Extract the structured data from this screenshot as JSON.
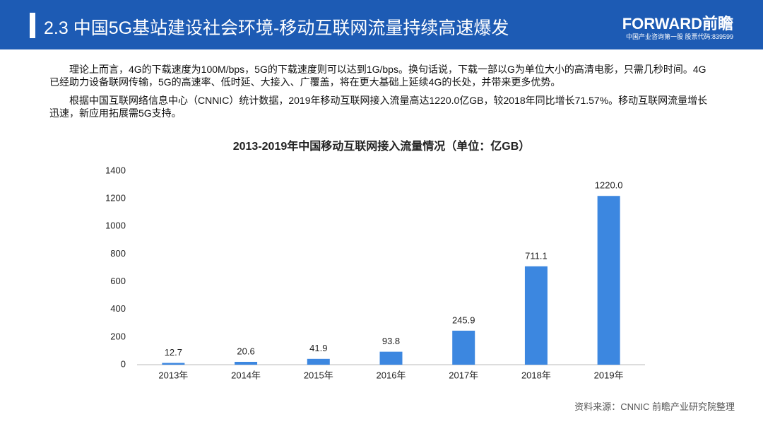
{
  "header": {
    "title": "2.3 中国5G基站建设社会环境-移动互联网流量持续高速爆发",
    "logo": "FORWARD前瞻",
    "logo_sub": "中国产业咨询第一股 股票代码:839599"
  },
  "paragraphs": [
    "理论上而言，4G的下载速度为100M/bps，5G的下载速度则可以达到1G/bps。换句话说，下载一部以G为单位大小的高清电影，只需几秒时间。4G已经助力设备联网传输，5G的高速率、低时延、大接入、广覆盖，将在更大基础上延续4G的长处，并带来更多优势。",
    "根据中国互联网络信息中心（CNNIC）统计数据，2019年移动互联网接入流量高达1220.0亿GB，较2018年同比增长71.57%。移动互联网流量增长迅速，新应用拓展需5G支持。"
  ],
  "chart_data": {
    "type": "bar",
    "title": "2013-2019年中国移动互联网接入流量情况（单位：亿GB）",
    "categories": [
      "2013年",
      "2014年",
      "2015年",
      "2016年",
      "2017年",
      "2018年",
      "2019年"
    ],
    "values": [
      12.7,
      20.6,
      41.9,
      93.8,
      245.9,
      711.1,
      1220.0
    ],
    "value_labels": [
      "12.7",
      "20.6",
      "41.9",
      "93.8",
      "245.9",
      "711.1",
      "1220.0"
    ],
    "color": "#3c87e0",
    "ylim": [
      0,
      1400
    ],
    "yticks": [
      0,
      200,
      400,
      600,
      800,
      1000,
      1200,
      1400
    ],
    "grid": false
  },
  "source": "资料来源：CNNIC 前瞻产业研究院整理"
}
